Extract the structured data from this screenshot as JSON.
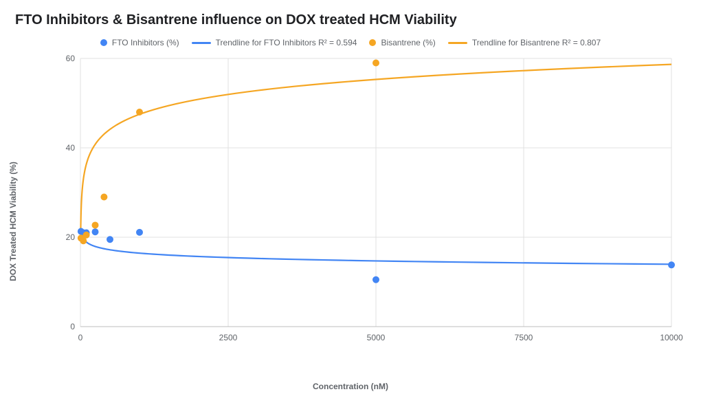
{
  "chart": {
    "title": "FTO Inhibitors & Bisantrene influence on DOX treated HCM Viability",
    "type": "scatter",
    "background_color": "#ffffff",
    "grid_color": "#e0e0e0",
    "baseline_color": "#bdbdbd",
    "title_fontsize": 20,
    "label_fontsize": 12,
    "tick_fontsize": 12,
    "x_axis": {
      "label": "Concentration (nM)",
      "min": 0,
      "max": 10000,
      "ticks": [
        0,
        2500,
        5000,
        7500,
        10000
      ]
    },
    "y_axis": {
      "label": "DOX Treated HCM Viability (%)",
      "min": 0,
      "max": 60,
      "ticks": [
        0,
        20,
        40,
        60
      ]
    },
    "legend": {
      "items": [
        {
          "type": "dot",
          "color": "#4285f4",
          "label": "FTO Inhibitors (%)"
        },
        {
          "type": "line",
          "color": "#4285f4",
          "label": "Trendline for FTO Inhibitors R² = 0.594"
        },
        {
          "type": "dot",
          "color": "#f5a623",
          "label": "Bisantrene (%)"
        },
        {
          "type": "line",
          "color": "#f5a623",
          "label": "Trendline for Bisantrene R² = 0.807"
        }
      ]
    },
    "series": [
      {
        "name": "FTO Inhibitors (%)",
        "color": "#4285f4",
        "marker": "circle",
        "marker_size": 5,
        "points": [
          {
            "x": 10,
            "y": 21.3
          },
          {
            "x": 50,
            "y": 21.0
          },
          {
            "x": 100,
            "y": 21.0
          },
          {
            "x": 250,
            "y": 21.2
          },
          {
            "x": 500,
            "y": 19.5
          },
          {
            "x": 1000,
            "y": 21.1
          },
          {
            "x": 5000,
            "y": 10.5
          },
          {
            "x": 10000,
            "y": 13.8
          }
        ],
        "trend": {
          "type": "log",
          "a": 23.9,
          "b": -1.08,
          "x0": 1,
          "color": "#4285f4"
        }
      },
      {
        "name": "Bisantrene (%)",
        "color": "#f5a623",
        "marker": "circle",
        "marker_size": 5,
        "points": [
          {
            "x": 10,
            "y": 19.8
          },
          {
            "x": 50,
            "y": 19.2
          },
          {
            "x": 100,
            "y": 20.5
          },
          {
            "x": 250,
            "y": 22.7
          },
          {
            "x": 400,
            "y": 29.0
          },
          {
            "x": 1000,
            "y": 48.0
          },
          {
            "x": 5000,
            "y": 59.0
          }
        ],
        "trend": {
          "type": "log",
          "a": 14.0,
          "b": 4.85,
          "x0": 1,
          "color": "#f5a623"
        }
      }
    ]
  }
}
